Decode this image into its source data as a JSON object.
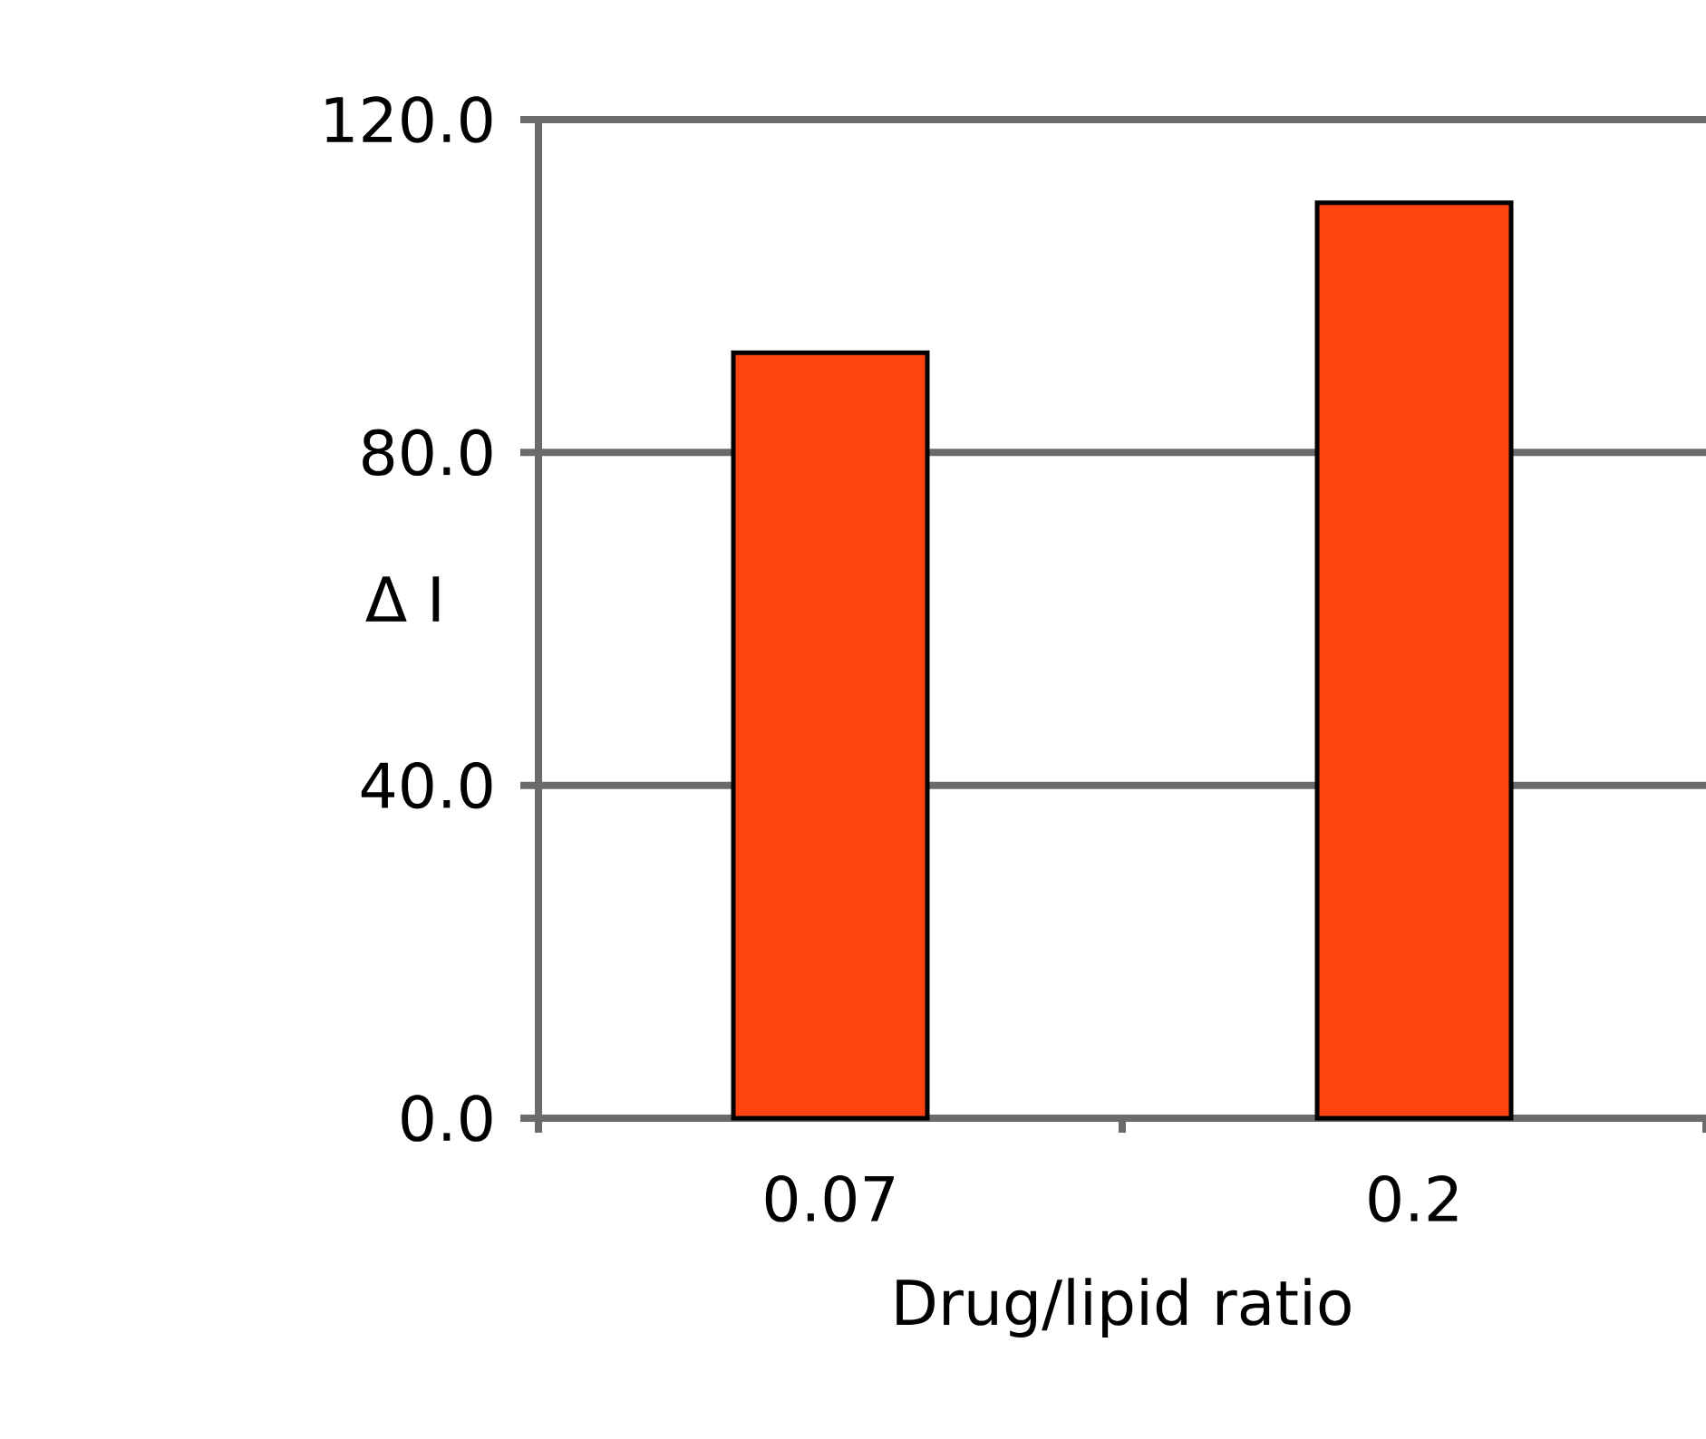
{
  "chart_data": {
    "type": "bar",
    "categories": [
      "0.07",
      "0.2"
    ],
    "values": [
      92,
      110
    ],
    "color": "#ff4411",
    "xlabel": "Drug/lipid ratio",
    "ylabel": "Δ I",
    "ylim": [
      0,
      120
    ],
    "yticks": [
      {
        "value": 0,
        "label": "0.0"
      },
      {
        "value": 40,
        "label": "40.0"
      },
      {
        "value": 80,
        "label": "80.0"
      },
      {
        "value": 120,
        "label": "120.0"
      }
    ],
    "grid": "y"
  }
}
